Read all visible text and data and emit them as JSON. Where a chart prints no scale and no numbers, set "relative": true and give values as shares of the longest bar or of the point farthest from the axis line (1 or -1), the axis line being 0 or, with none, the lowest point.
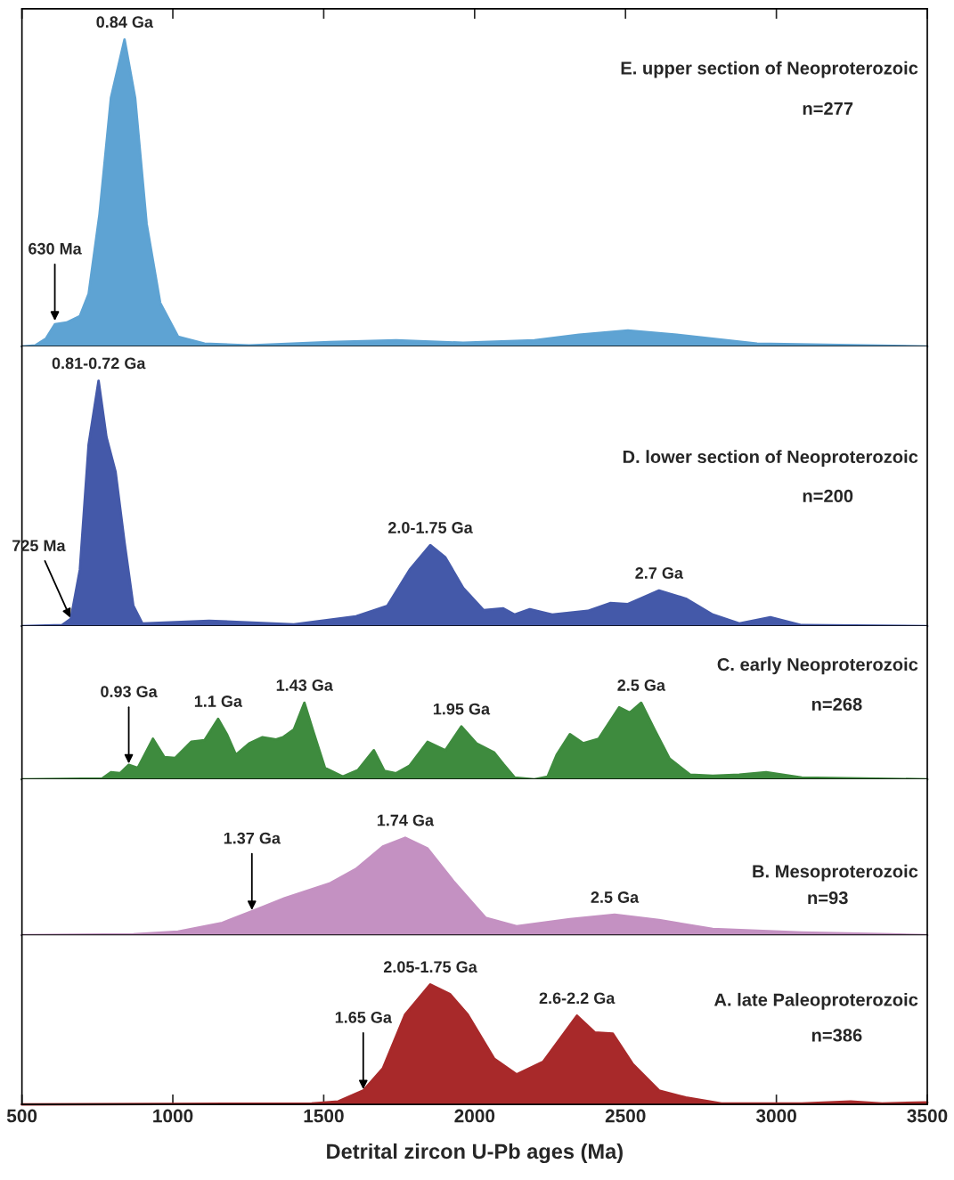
{
  "chart_data": [
    {
      "type": "area",
      "title": "E. upper section of Neoproterozoic",
      "subtitle": "n=277",
      "relative": true,
      "xlim": [
        500,
        3500
      ],
      "xticks": [
        500,
        1000,
        1500,
        2000,
        2500,
        3000,
        3500
      ],
      "tick_labels": false,
      "grid": false,
      "x": [
        500,
        544,
        580,
        609,
        648,
        692,
        721,
        757,
        795,
        840,
        875,
        913,
        958,
        1017,
        1105,
        1253,
        1519,
        1740,
        1962,
        2198,
        2346,
        2508,
        2670,
        2936,
        3500
      ],
      "series": [
        {
          "color": "#5ea3d3",
          "values": [
            0,
            0.003,
            0.026,
            0.072,
            0.078,
            0.099,
            0.171,
            0.43,
            0.81,
            1.0,
            0.81,
            0.4,
            0.142,
            0.032,
            0.009,
            0.003,
            0.014,
            0.02,
            0.012,
            0.02,
            0.038,
            0.052,
            0.038,
            0.009,
            0
          ]
        }
      ],
      "annotations": [
        {
          "text": "0.84 Ga",
          "x": 840,
          "y": 1.0
        },
        {
          "text": "630 Ma",
          "x": 609,
          "y": 0.08
        }
      ]
    },
    {
      "type": "area",
      "title": "D. lower section of Neoproterozoic",
      "subtitle": "n=200",
      "relative": true,
      "xlim": [
        500,
        3500
      ],
      "xticks": [
        500,
        1000,
        1500,
        2000,
        2500,
        3000,
        3500
      ],
      "tick_labels": false,
      "grid": false,
      "x": [
        500,
        633,
        662,
        692,
        721,
        754,
        780,
        810,
        840,
        869,
        899,
        1120,
        1401,
        1607,
        1711,
        1785,
        1853,
        1903,
        1962,
        2030,
        2095,
        2133,
        2183,
        2257,
        2375,
        2449,
        2508,
        2611,
        2700,
        2789,
        2877,
        2980,
        3084,
        3500
      ],
      "series": [
        {
          "color": "#4459a9",
          "values": [
            0,
            0.004,
            0.03,
            0.23,
            0.74,
            1.0,
            0.77,
            0.63,
            0.34,
            0.083,
            0.011,
            0.022,
            0.007,
            0.04,
            0.083,
            0.23,
            0.33,
            0.28,
            0.156,
            0.065,
            0.072,
            0.047,
            0.069,
            0.047,
            0.062,
            0.094,
            0.09,
            0.145,
            0.112,
            0.047,
            0.011,
            0.036,
            0.004,
            0
          ]
        }
      ],
      "annotations": [
        {
          "text": "0.81-0.72 Ga",
          "x": 754,
          "y": 1.0
        },
        {
          "text": "725 Ma",
          "x": 662,
          "y": 0.03
        },
        {
          "text": "2.0-1.75 Ga",
          "x": 1853,
          "y": 0.33
        },
        {
          "text": "2.7 Ga",
          "x": 2611,
          "y": 0.145
        }
      ]
    },
    {
      "type": "area",
      "title": "C. early Neoproterozoic",
      "subtitle": "n=268",
      "relative": true,
      "xlim": [
        500,
        3500
      ],
      "xticks": [
        500,
        1000,
        1500,
        2000,
        2500,
        3000,
        3500
      ],
      "tick_labels": false,
      "grid": false,
      "x": [
        500,
        766,
        795,
        825,
        854,
        884,
        934,
        972,
        1008,
        1061,
        1105,
        1150,
        1179,
        1209,
        1253,
        1297,
        1342,
        1365,
        1401,
        1436,
        1466,
        1504,
        1563,
        1613,
        1666,
        1701,
        1740,
        1785,
        1844,
        1903,
        1956,
        2006,
        2065,
        2095,
        2133,
        2198,
        2242,
        2272,
        2316,
        2360,
        2411,
        2479,
        2514,
        2552,
        2596,
        2646,
        2714,
        2789,
        2877,
        2966,
        3084,
        3500
      ],
      "series": [
        {
          "color": "#3e8b3e",
          "values": [
            0,
            0.012,
            0.094,
            0.08,
            0.19,
            0.15,
            0.53,
            0.29,
            0.28,
            0.49,
            0.51,
            0.79,
            0.59,
            0.32,
            0.47,
            0.55,
            0.52,
            0.55,
            0.65,
            1.0,
            0.62,
            0.15,
            0.035,
            0.12,
            0.38,
            0.11,
            0.08,
            0.18,
            0.49,
            0.38,
            0.69,
            0.47,
            0.35,
            0.2,
            0.024,
            0,
            0.035,
            0.32,
            0.59,
            0.47,
            0.53,
            0.94,
            0.87,
            1.0,
            0.65,
            0.27,
            0.06,
            0.047,
            0.06,
            0.094,
            0.024,
            0
          ]
        }
      ],
      "annotations": [
        {
          "text": "0.93 Ga",
          "x": 854,
          "y": 0.19
        },
        {
          "text": "1.1 Ga",
          "x": 1150,
          "y": 0.79
        },
        {
          "text": "1.43 Ga",
          "x": 1436,
          "y": 1.0
        },
        {
          "text": "1.95 Ga",
          "x": 1956,
          "y": 0.69
        },
        {
          "text": "2.5 Ga",
          "x": 2552,
          "y": 1.0
        }
      ]
    },
    {
      "type": "area",
      "title": "B. Mesoproterozoic",
      "subtitle": "n=93",
      "relative": true,
      "xlim": [
        500,
        3500
      ],
      "xticks": [
        500,
        1000,
        1500,
        2000,
        2500,
        3000,
        3500
      ],
      "tick_labels": false,
      "grid": false,
      "x": [
        500,
        869,
        1017,
        1164,
        1262,
        1371,
        1519,
        1607,
        1696,
        1770,
        1844,
        1932,
        2036,
        2139,
        2316,
        2464,
        2611,
        2789,
        3084,
        3379,
        3500
      ],
      "series": [
        {
          "color": "#c491c2",
          "values": [
            0,
            0.009,
            0.036,
            0.127,
            0.245,
            0.38,
            0.53,
            0.68,
            0.91,
            1.0,
            0.89,
            0.545,
            0.18,
            0.091,
            0.164,
            0.21,
            0.155,
            0.064,
            0.027,
            0.009,
            0
          ]
        }
      ],
      "annotations": [
        {
          "text": "1.37 Ga",
          "x": 1262,
          "y": 0.245
        },
        {
          "text": "1.74 Ga",
          "x": 1770,
          "y": 1.0
        },
        {
          "text": "2.5 Ga",
          "x": 2464,
          "y": 0.21
        }
      ]
    },
    {
      "type": "area",
      "title": "A. late Paleoproterozoic",
      "subtitle": "n=386",
      "xlabel": "Detrital zircon U-Pb ages (Ma)",
      "relative": true,
      "xlim": [
        500,
        3500
      ],
      "xticks": [
        500,
        1000,
        1500,
        2000,
        2500,
        3000,
        3500
      ],
      "grid": false,
      "x": [
        500,
        1460,
        1548,
        1631,
        1696,
        1770,
        1853,
        1918,
        1977,
        2065,
        2139,
        2227,
        2339,
        2398,
        2458,
        2523,
        2611,
        2700,
        2818,
        3084,
        3246,
        3350,
        3500
      ],
      "series": [
        {
          "color": "#a8292a",
          "values": [
            0,
            0.008,
            0.025,
            0.116,
            0.3,
            0.75,
            1.0,
            0.92,
            0.75,
            0.38,
            0.25,
            0.355,
            0.74,
            0.6,
            0.59,
            0.34,
            0.116,
            0.058,
            0.008,
            0.008,
            0.025,
            0.008,
            0.017
          ]
        }
      ],
      "annotations": [
        {
          "text": "2.05-1.75 Ga",
          "x": 1853,
          "y": 1.0
        },
        {
          "text": "1.65 Ga",
          "x": 1631,
          "y": 0.116
        },
        {
          "text": "2.6-2.2 Ga",
          "x": 2339,
          "y": 0.74
        }
      ]
    }
  ]
}
